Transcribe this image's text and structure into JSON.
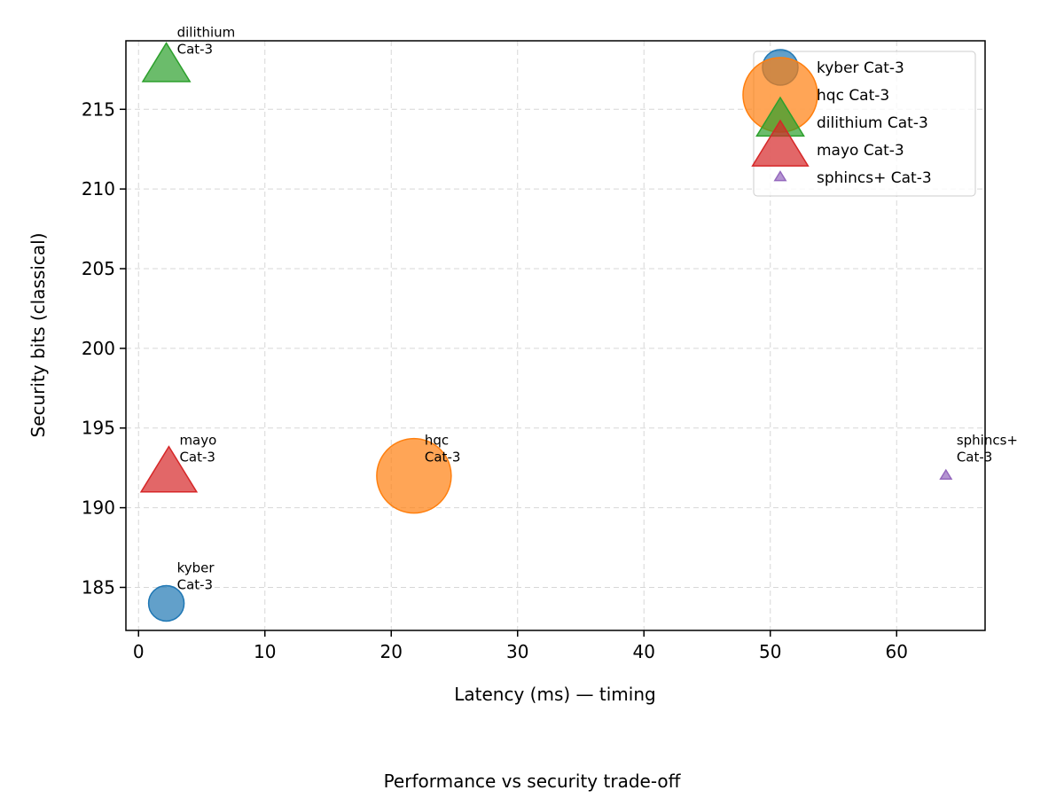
{
  "chart_data": {
    "type": "scatter",
    "title": "",
    "caption": "Performance vs security trade-off",
    "xlabel": "Latency (ms) — timing",
    "ylabel": "Security bits (classical)",
    "xlim": [
      -1,
      67
    ],
    "ylim": [
      182.3,
      219.3
    ],
    "xticks": [
      0,
      10,
      20,
      30,
      40,
      50,
      60
    ],
    "yticks": [
      185,
      190,
      195,
      200,
      205,
      210,
      215
    ],
    "grid": true,
    "legend_position": "top-right",
    "series": [
      {
        "name": "kyber Cat-3",
        "label_lines": [
          "kyber",
          "Cat-3"
        ],
        "marker": "circle",
        "color": "#1f77b4",
        "size": 40,
        "points": [
          {
            "x": 2.2,
            "y": 184
          }
        ]
      },
      {
        "name": "hqc Cat-3",
        "label_lines": [
          "hqc",
          "Cat-3"
        ],
        "marker": "circle",
        "color": "#ff7f0e",
        "size": 84,
        "points": [
          {
            "x": 21.8,
            "y": 192
          }
        ]
      },
      {
        "name": "dilithium Cat-3",
        "label_lines": [
          "dilithium",
          "Cat-3"
        ],
        "marker": "triangle",
        "color": "#2ca02c",
        "size": 56,
        "points": [
          {
            "x": 2.2,
            "y": 217.6
          }
        ]
      },
      {
        "name": "mayo Cat-3",
        "label_lines": [
          "mayo",
          "Cat-3"
        ],
        "marker": "triangle",
        "color": "#d62728",
        "size": 66,
        "points": [
          {
            "x": 2.4,
            "y": 192
          }
        ]
      },
      {
        "name": "sphincs+ Cat-3",
        "label_lines": [
          "sphincs+",
          "Cat-3"
        ],
        "marker": "triangle",
        "color": "#9467bd",
        "size": 13,
        "points": [
          {
            "x": 63.9,
            "y": 192
          }
        ]
      }
    ]
  }
}
